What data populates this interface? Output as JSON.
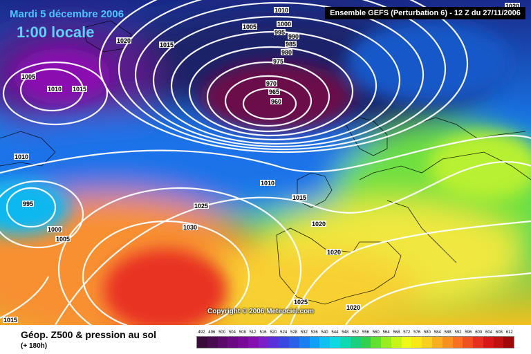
{
  "header": {
    "date": "Mardi 5 décembre 2006",
    "local_time": "1:00 locale",
    "run": "Ensemble GEFS (Perturbation 6)  -  12 Z du 27/11/2006"
  },
  "map": {
    "copyright": "Copyright © 2006 Meteociel.com",
    "isobars": [
      {
        "name": "iso-1010-top",
        "text": "1010"
      },
      {
        "name": "iso-1005-top",
        "text": "1005"
      },
      {
        "name": "iso-1000-top",
        "text": "1000"
      },
      {
        "name": "iso-995-top",
        "text": "995"
      },
      {
        "name": "iso-990",
        "text": "990"
      },
      {
        "name": "iso-985",
        "text": "985"
      },
      {
        "name": "iso-980",
        "text": "980"
      },
      {
        "name": "iso-975",
        "text": "975"
      },
      {
        "name": "iso-970",
        "text": "970"
      },
      {
        "name": "iso-965",
        "text": "965"
      },
      {
        "name": "iso-960",
        "text": "960"
      },
      {
        "name": "iso-1020-nw",
        "text": "1020"
      },
      {
        "name": "iso-1015-nw",
        "text": "1015"
      },
      {
        "name": "iso-1005-w",
        "text": "1005"
      },
      {
        "name": "iso-1010-w",
        "text": "1010"
      },
      {
        "name": "iso-1015-w",
        "text": "1015"
      },
      {
        "name": "iso-1010-mid",
        "text": "1010"
      },
      {
        "name": "iso-995-sw",
        "text": "995"
      },
      {
        "name": "iso-1000-sw",
        "text": "1000"
      },
      {
        "name": "iso-1005-sw",
        "text": "1005"
      },
      {
        "name": "iso-1010-center",
        "text": "1010"
      },
      {
        "name": "iso-1015-center",
        "text": "1015"
      },
      {
        "name": "iso-1025",
        "text": "1025"
      },
      {
        "name": "iso-1030",
        "text": "1030"
      },
      {
        "name": "iso-1020-biscay",
        "text": "1020"
      },
      {
        "name": "iso-1020-iberia",
        "text": "1020"
      },
      {
        "name": "iso-1025-south",
        "text": "1025"
      },
      {
        "name": "iso-1020-med",
        "text": "1020"
      },
      {
        "name": "iso-1015-sw",
        "text": "1015"
      },
      {
        "name": "iso-1020-ne",
        "text": "1020"
      }
    ]
  },
  "legend": {
    "title": "Géop. Z500 & pression au sol",
    "subtitle": "(+ 180h)",
    "ticks": [
      "492",
      "496",
      "500",
      "504",
      "508",
      "512",
      "516",
      "520",
      "524",
      "528",
      "532",
      "536",
      "540",
      "544",
      "548",
      "552",
      "556",
      "560",
      "564",
      "568",
      "572",
      "576",
      "580",
      "584",
      "588",
      "592",
      "596",
      "600",
      "604",
      "608",
      "612"
    ],
    "colors": [
      "#3a0a3a",
      "#4a0a50",
      "#5a0a68",
      "#6a0a82",
      "#780a98",
      "#8410b0",
      "#7a20c8",
      "#5a30d8",
      "#3848e0",
      "#2860e8",
      "#1880f0",
      "#10a0f8",
      "#10c0f0",
      "#10d8e0",
      "#10d8b0",
      "#18d080",
      "#30d050",
      "#60e030",
      "#98ec20",
      "#c8f418",
      "#f0f818",
      "#f8e818",
      "#f8d020",
      "#f8b020",
      "#f89020",
      "#f87020",
      "#f05020",
      "#e83020",
      "#d81818",
      "#c01010",
      "#a00808"
    ]
  }
}
